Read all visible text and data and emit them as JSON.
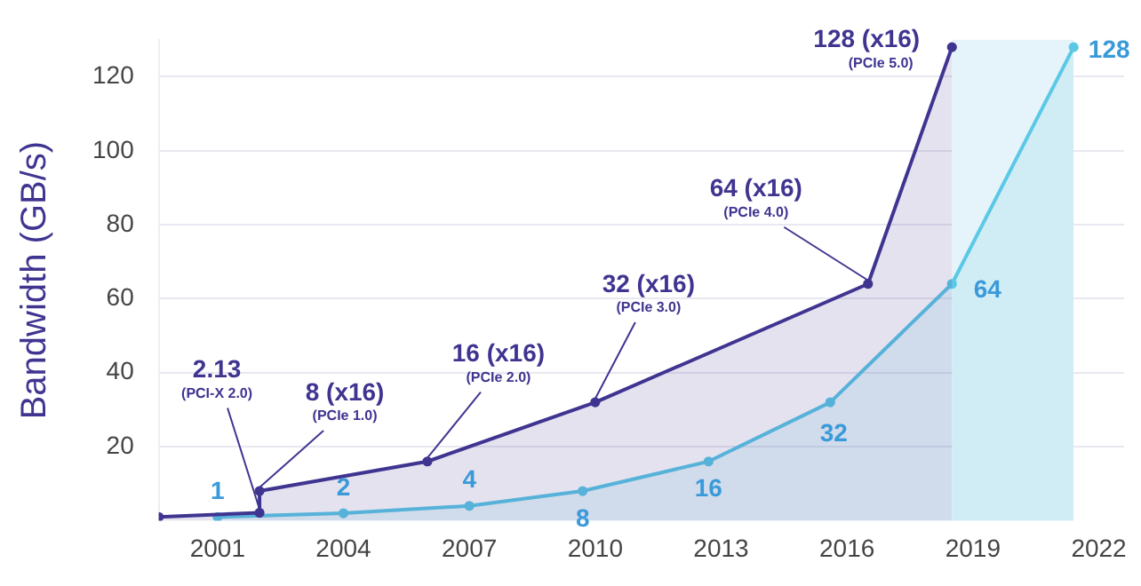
{
  "chart_data": {
    "type": "area",
    "ylabel": "Bandwidth (GB/s)",
    "xlim": [
      1999.6,
      2022.6
    ],
    "xticks": [
      2001,
      2004,
      2007,
      2010,
      2013,
      2016,
      2019,
      2022
    ],
    "ylim": [
      0,
      130
    ],
    "yticks": [
      20,
      40,
      60,
      80,
      100,
      120
    ],
    "series": [
      {
        "color": "#3f3591",
        "x": [
          1999.6,
          2002,
          2002,
          2006,
          2010,
          2016.5,
          2018.5
        ],
        "values": [
          1,
          2.13,
          8,
          16,
          32,
          64,
          128
        ]
      },
      {
        "color": "#5bc8e6",
        "x": [
          2001,
          2004,
          2007,
          2009.7,
          2012.7,
          2015.6,
          2018.5,
          2021.4
        ],
        "values": [
          1,
          2,
          4,
          8,
          16,
          32,
          64,
          128
        ],
        "value_labels": [
          "1",
          "2",
          "4",
          "8",
          "16",
          "32",
          "64",
          "128"
        ]
      }
    ],
    "bands": [
      {
        "axis": "x",
        "from": 2018.5,
        "to": 2021.4,
        "color": "#e4f4fa"
      }
    ],
    "annotations": [
      {
        "text": "2.13",
        "x": 2002,
        "y": 2.13
      },
      {
        "text": "(PCI-X 2.0)",
        "x": 2002,
        "y": 2.13
      },
      {
        "text": "8 (x16)",
        "x": 2002,
        "y": 8
      },
      {
        "text": "(PCIe 1.0)",
        "x": 2002,
        "y": 8
      },
      {
        "text": "16 (x16)",
        "x": 2006,
        "y": 16
      },
      {
        "text": "(PCIe 2.0)",
        "x": 2006,
        "y": 16
      },
      {
        "text": "32 (x16)",
        "x": 2010,
        "y": 32
      },
      {
        "text": "(PCIe 3.0)",
        "x": 2010,
        "y": 32
      },
      {
        "text": "64 (x16)",
        "x": 2016.5,
        "y": 64
      },
      {
        "text": "(PCIe 4.0)",
        "x": 2016.5,
        "y": 64
      },
      {
        "text": "128 (x16)",
        "x": 2018.5,
        "y": 128
      },
      {
        "text": "(PCIe 5.0)",
        "x": 2018.5,
        "y": 128
      }
    ],
    "grid": "y",
    "legend": false,
    "marker": "circle",
    "line_style": "solid"
  }
}
